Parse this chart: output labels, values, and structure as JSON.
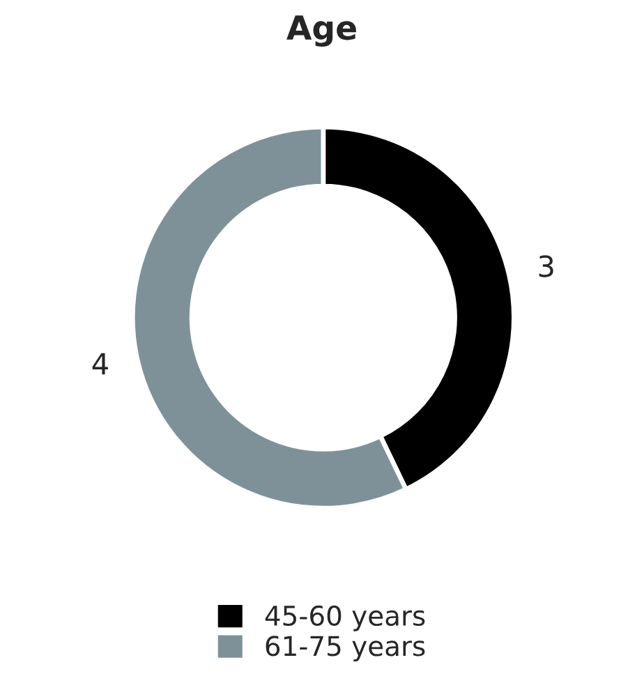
{
  "chart_data": {
    "type": "donut",
    "title": "Age",
    "categories": [
      "45-60 years",
      "61-75 years"
    ],
    "values": [
      3,
      4
    ],
    "colors": [
      "#000000",
      "#7f9198"
    ],
    "data_labels": true,
    "legend": "bottom"
  }
}
